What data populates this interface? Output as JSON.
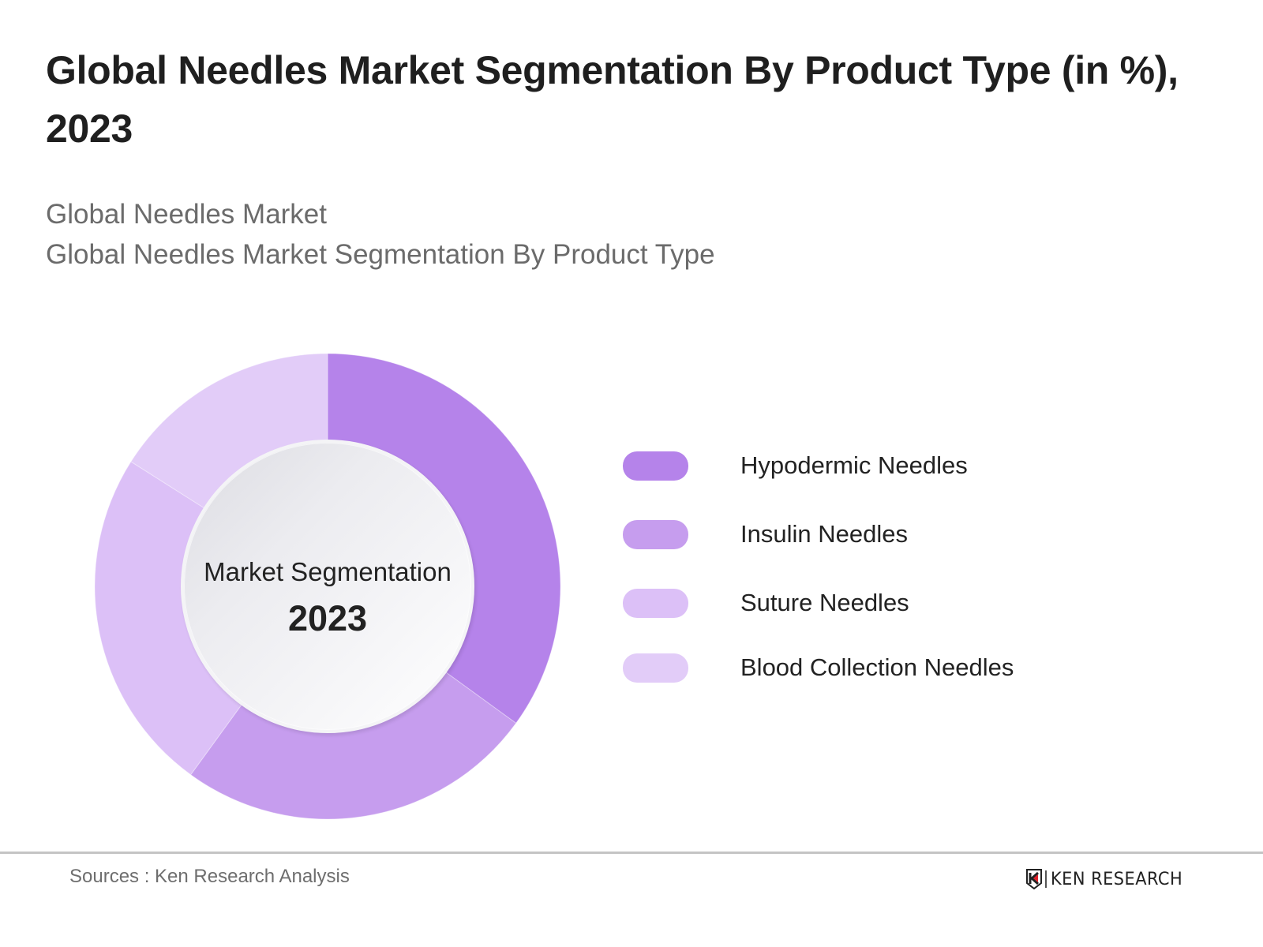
{
  "header": {
    "title": "Global Needles Market Segmentation By Product Type (in %), 2023",
    "subtitle_lines": [
      "Global Needles Market",
      "Global Needles Market Segmentation By Product Type"
    ]
  },
  "donut": {
    "center_label": "Market Segmentation",
    "center_year": "2023"
  },
  "legend": {
    "items": [
      {
        "label": "Hypodermic Needles",
        "color": "#B583EA"
      },
      {
        "label": "Insulin Needles",
        "color": "#C69DEE"
      },
      {
        "label": "Suture Needles",
        "color": "#DCC0F7"
      },
      {
        "label": "Blood Collection Needles",
        "color": "#E2CCF8"
      }
    ]
  },
  "footer": {
    "sources": "Sources : Ken Research Analysis",
    "logo_text": "KEN RESEARCH",
    "logo_icon": "ken-research-shield-icon"
  },
  "chart_data": {
    "type": "pie",
    "variant": "donut",
    "title": "Global Needles Market Segmentation By Product Type (in %), 2023",
    "subtitle": "Global Needles Market / Global Needles Market Segmentation By Product Type",
    "categories": [
      "Hypodermic Needles",
      "Insulin Needles",
      "Suture Needles",
      "Blood Collection Needles"
    ],
    "values": [
      35,
      25,
      24,
      16
    ],
    "unit": "%",
    "colors": [
      "#B583EA",
      "#C69DEE",
      "#DCC0F7",
      "#E2CCF8"
    ],
    "start_angle": "12 o'clock, clockwise",
    "center_text": [
      "Market Segmentation",
      "2023"
    ],
    "legend_position": "right",
    "data_labels": false,
    "source": "Sources : Ken Research Analysis"
  }
}
